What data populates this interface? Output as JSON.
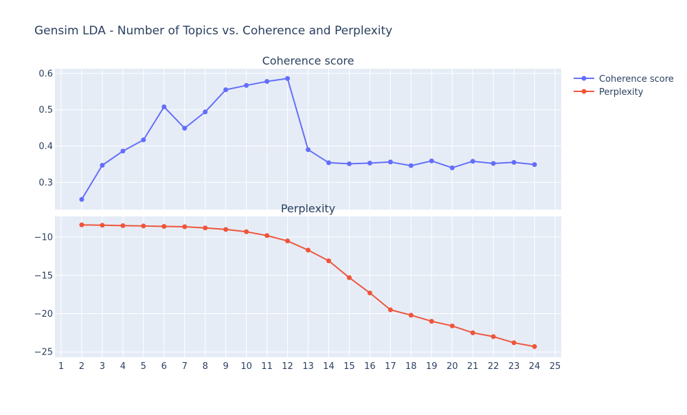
{
  "title": "Gensim LDA - Number of Topics vs. Coherence and Perplexity",
  "subplot_titles": [
    "Coherence score",
    "Perplexity"
  ],
  "colors": {
    "coherence": "#636efa",
    "perplexity": "#ef553b",
    "plot_bg": "#e5ecf6",
    "grid": "#ffffff",
    "text": "#2a3f5f"
  },
  "legend": {
    "placement": "top-right",
    "items": [
      "Coherence score",
      "Perplexity"
    ]
  },
  "chart_data": [
    {
      "type": "line",
      "title": "Coherence score",
      "x": [
        2,
        3,
        4,
        5,
        6,
        7,
        8,
        9,
        10,
        11,
        12,
        13,
        14,
        15,
        16,
        17,
        18,
        19,
        20,
        21,
        22,
        23,
        24
      ],
      "series": [
        {
          "name": "Coherence score",
          "values": [
            0.253,
            0.347,
            0.386,
            0.417,
            0.508,
            0.449,
            0.494,
            0.555,
            0.567,
            0.578,
            0.586,
            0.39,
            0.354,
            0.351,
            0.353,
            0.356,
            0.346,
            0.359,
            0.34,
            0.358,
            0.352,
            0.355,
            0.349
          ]
        }
      ],
      "xlim": [
        0.7,
        25.3
      ],
      "ylim": [
        0.225,
        0.613
      ],
      "yticks": [
        0.3,
        0.4,
        0.5,
        0.6
      ],
      "ytick_labels": [
        "0.3",
        "0.4",
        "0.5",
        "0.6"
      ],
      "grid": true
    },
    {
      "type": "line",
      "title": "Perplexity",
      "x": [
        2,
        3,
        4,
        5,
        6,
        7,
        8,
        9,
        10,
        11,
        12,
        13,
        14,
        15,
        16,
        17,
        18,
        19,
        20,
        21,
        22,
        23,
        24
      ],
      "series": [
        {
          "name": "Perplexity",
          "values": [
            -8.4,
            -8.45,
            -8.5,
            -8.55,
            -8.6,
            -8.65,
            -8.8,
            -9.0,
            -9.3,
            -9.8,
            -10.5,
            -11.7,
            -13.1,
            -15.3,
            -17.3,
            -19.5,
            -20.2,
            -21.0,
            -21.6,
            -22.5,
            -23.0,
            -23.8,
            -24.3
          ]
        }
      ],
      "xlim": [
        0.7,
        25.3
      ],
      "ylim": [
        -25.7,
        -7.3
      ],
      "yticks": [
        -25,
        -20,
        -15,
        -10
      ],
      "ytick_labels": [
        "−25",
        "−20",
        "−15",
        "−10"
      ],
      "xticks": [
        1,
        2,
        3,
        4,
        5,
        6,
        7,
        8,
        9,
        10,
        11,
        12,
        13,
        14,
        15,
        16,
        17,
        18,
        19,
        20,
        21,
        22,
        23,
        24,
        25
      ],
      "xtick_labels": [
        "1",
        "2",
        "3",
        "4",
        "5",
        "6",
        "7",
        "8",
        "9",
        "10",
        "11",
        "12",
        "13",
        "14",
        "15",
        "16",
        "17",
        "18",
        "19",
        "20",
        "21",
        "22",
        "23",
        "24",
        "25"
      ],
      "grid": true
    }
  ]
}
